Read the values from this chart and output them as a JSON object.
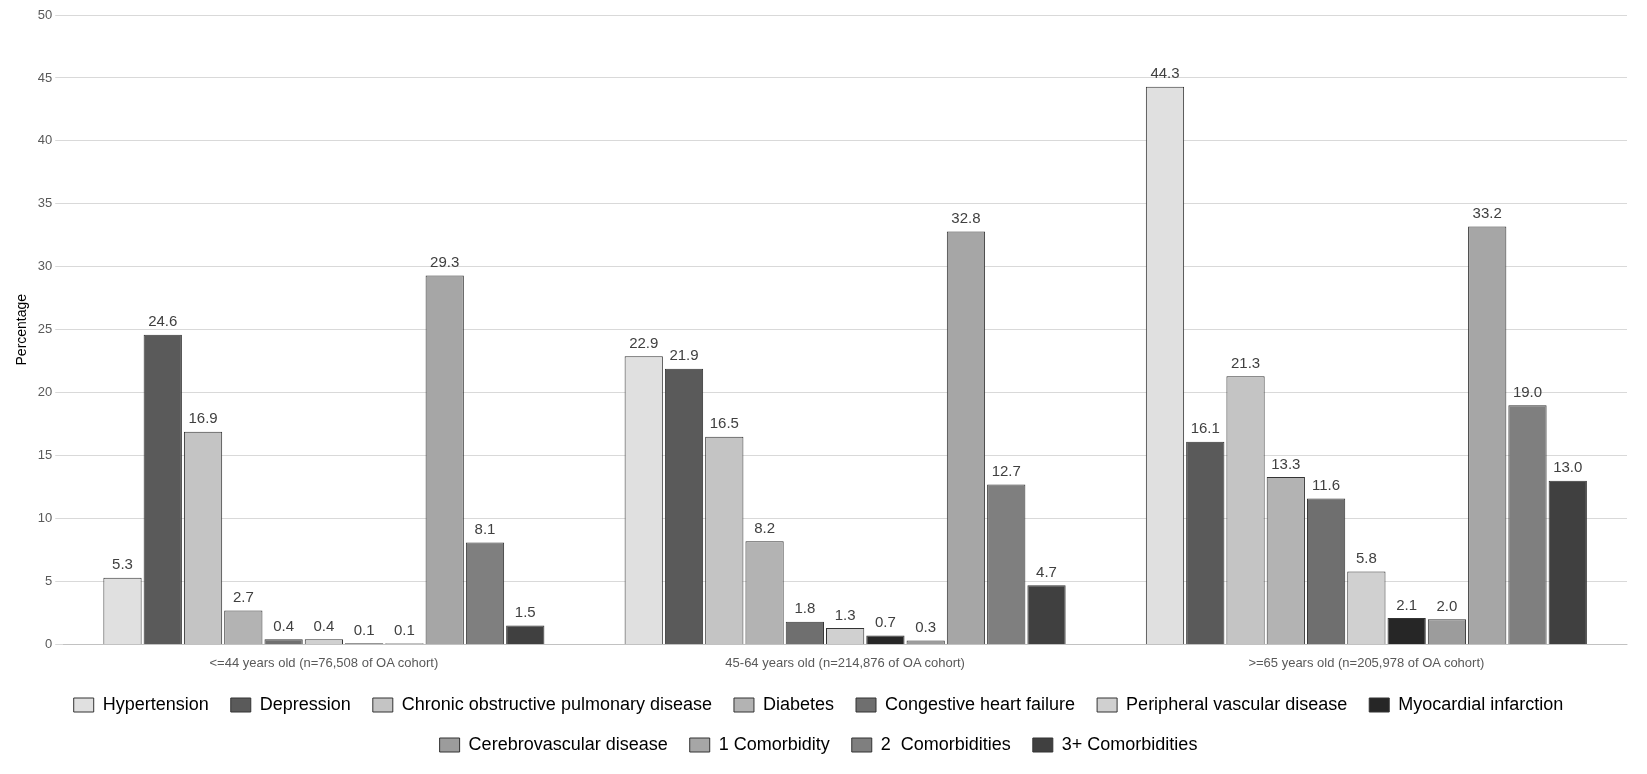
{
  "chart_data": {
    "type": "bar",
    "ylabel": "Percentage",
    "categories": [
      "<=44 years old (n=76,508 of OA cohort)",
      "45-64 years old (n=214,876 of OA cohort)",
      ">=65 years old (n=205,978 of OA cohort)"
    ],
    "ylim": [
      0,
      50
    ],
    "yticks": [
      0,
      5,
      10,
      15,
      20,
      25,
      30,
      35,
      40,
      45,
      50
    ],
    "grid": "y",
    "legend": "bottom",
    "series": [
      {
        "name": "Hypertension",
        "color": "#e0e0e0",
        "values": [
          5.3,
          22.9,
          44.3
        ],
        "value_labels": [
          "5.3",
          "22.9",
          "44.3"
        ]
      },
      {
        "name": "Depression",
        "color": "#5a5a5a",
        "values": [
          24.6,
          21.9,
          16.1
        ],
        "value_labels": [
          "24.6",
          "21.9",
          "16.1"
        ]
      },
      {
        "name": "Chronic obstructive pulmonary disease",
        "color": "#c4c4c4",
        "values": [
          16.9,
          16.5,
          21.3
        ],
        "value_labels": [
          "16.9",
          "16.5",
          "21.3"
        ]
      },
      {
        "name": "Diabetes",
        "color": "#b3b3b3",
        "values": [
          2.7,
          8.2,
          13.3
        ],
        "value_labels": [
          "2.7",
          "8.2",
          "13.3"
        ]
      },
      {
        "name": "Congestive heart failure",
        "color": "#6f6f6f",
        "values": [
          0.4,
          1.8,
          11.6
        ],
        "value_labels": [
          "0.4",
          "1.8",
          "11.6"
        ]
      },
      {
        "name": "Peripheral vascular disease",
        "color": "#d0d0d0",
        "values": [
          0.4,
          1.3,
          5.8
        ],
        "value_labels": [
          "0.4",
          "1.3",
          "5.8"
        ]
      },
      {
        "name": "Myocardial infarction",
        "color": "#262626",
        "values": [
          0.1,
          0.7,
          2.1
        ],
        "value_labels": [
          "0.1",
          "0.7",
          "2.1"
        ]
      },
      {
        "name": "Cerebrovascular disease",
        "color": "#9c9c9c",
        "values": [
          0.1,
          0.3,
          2.0
        ],
        "value_labels": [
          "0.1",
          "0.3",
          "2.0"
        ]
      },
      {
        "name": "1 Comorbidity",
        "color": "#a6a6a6",
        "values": [
          29.3,
          32.8,
          33.2
        ],
        "value_labels": [
          "29.3",
          "32.8",
          "33.2"
        ]
      },
      {
        "name": "2  Comorbidities",
        "color": "#7f7f7f",
        "values": [
          8.1,
          12.7,
          19.0
        ],
        "value_labels": [
          "8.1",
          "12.7",
          "19.0"
        ]
      },
      {
        "name": "3+ Comorbidities",
        "color": "#404040",
        "values": [
          1.5,
          4.7,
          13.0
        ],
        "value_labels": [
          "1.5",
          "4.7",
          "13.0"
        ]
      }
    ]
  }
}
